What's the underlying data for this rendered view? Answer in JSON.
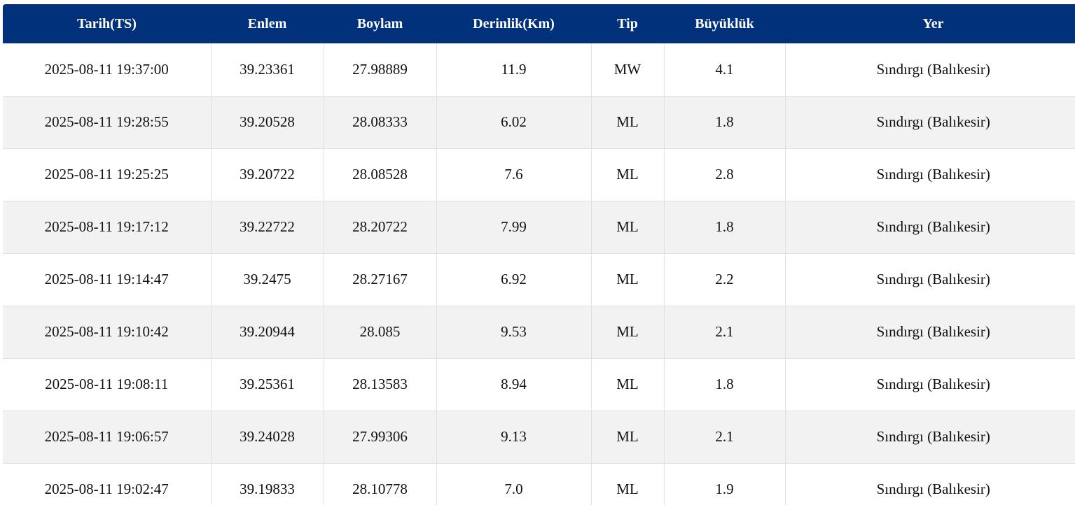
{
  "table": {
    "headers": [
      "Tarih(TS)",
      "Enlem",
      "Boylam",
      "Derinlik(Km)",
      "Tip",
      "Büyüklük",
      "Yer"
    ],
    "rows": [
      [
        "2025-08-11 19:37:00",
        "39.23361",
        "27.98889",
        "11.9",
        "MW",
        "4.1",
        "Sındırgı (Balıkesir)"
      ],
      [
        "2025-08-11 19:28:55",
        "39.20528",
        "28.08333",
        "6.02",
        "ML",
        "1.8",
        "Sındırgı (Balıkesir)"
      ],
      [
        "2025-08-11 19:25:25",
        "39.20722",
        "28.08528",
        "7.6",
        "ML",
        "2.8",
        "Sındırgı (Balıkesir)"
      ],
      [
        "2025-08-11 19:17:12",
        "39.22722",
        "28.20722",
        "7.99",
        "ML",
        "1.8",
        "Sındırgı (Balıkesir)"
      ],
      [
        "2025-08-11 19:14:47",
        "39.2475",
        "28.27167",
        "6.92",
        "ML",
        "2.2",
        "Sındırgı (Balıkesir)"
      ],
      [
        "2025-08-11 19:10:42",
        "39.20944",
        "28.085",
        "9.53",
        "ML",
        "2.1",
        "Sındırgı (Balıkesir)"
      ],
      [
        "2025-08-11 19:08:11",
        "39.25361",
        "28.13583",
        "8.94",
        "ML",
        "1.8",
        "Sındırgı (Balıkesir)"
      ],
      [
        "2025-08-11 19:06:57",
        "39.24028",
        "27.99306",
        "9.13",
        "ML",
        "2.1",
        "Sındırgı (Balıkesir)"
      ],
      [
        "2025-08-11 19:02:47",
        "39.19833",
        "28.10778",
        "7.0",
        "ML",
        "1.9",
        "Sındırgı (Balıkesir)"
      ]
    ]
  },
  "colors": {
    "header_bg": "#00317a",
    "header_text": "#ffffff",
    "row_alt_bg": "#f2f2f2",
    "grid_line": "#e0e0e0"
  }
}
